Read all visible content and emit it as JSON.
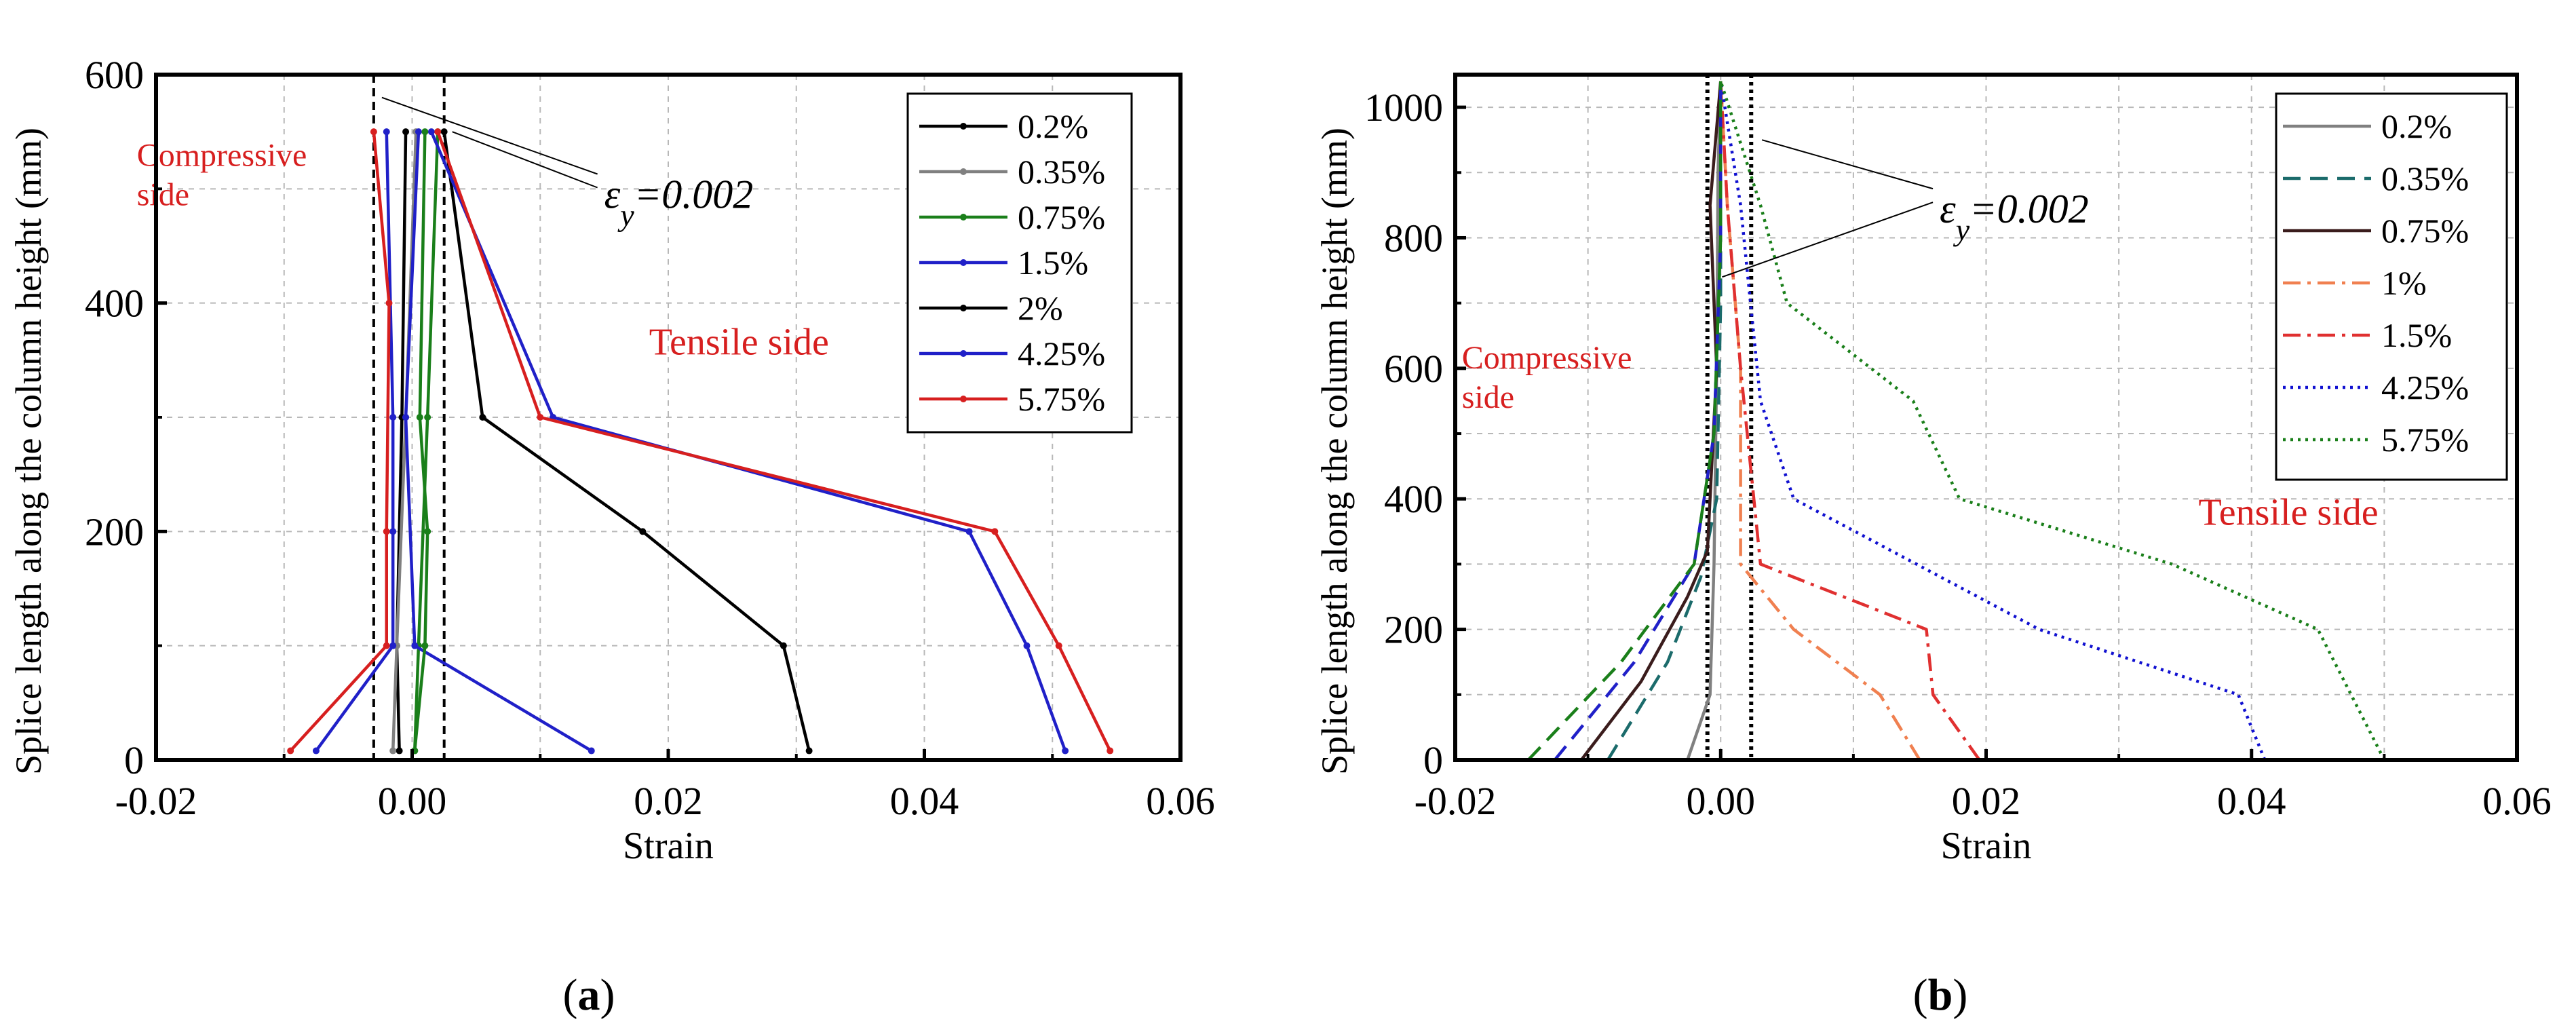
{
  "figure": {
    "panels": [
      {
        "label_text": "(a)",
        "panel_letter": "a"
      },
      {
        "label_text": "(b)",
        "panel_letter": "b"
      }
    ]
  },
  "chart_data": [
    {
      "panel": "a",
      "type": "line",
      "xlabel": "Strain",
      "ylabel": "Splice length along the column height (mm)",
      "xlim": [
        -0.02,
        0.06
      ],
      "ylim": [
        0,
        600
      ],
      "xticks": [
        -0.02,
        0.0,
        0.02,
        0.04,
        0.06
      ],
      "xtick_labels": [
        "-0.02",
        "0.00",
        "0.02",
        "0.04",
        "0.06"
      ],
      "yticks": [
        0,
        200,
        400,
        600
      ],
      "ytick_labels": [
        "0",
        "200",
        "400",
        "600"
      ],
      "grid": true,
      "legend_position": "top-right",
      "reference_lines": [
        {
          "type": "vertical",
          "x": -0.003,
          "style": "dashed",
          "color": "#000000"
        },
        {
          "type": "vertical",
          "x": 0.0025,
          "style": "dashed",
          "color": "#000000"
        }
      ],
      "annotations": [
        {
          "text": "εy=0.002",
          "main": "ε",
          "sub": "y",
          "rest": "=0.002",
          "x": 0.015,
          "y": 510,
          "anchor_x1": -0.003,
          "anchor_y1": 580,
          "anchor_x2": 0.0025,
          "anchor_y2": 550,
          "color": "#000000"
        },
        {
          "text": "Compressive side",
          "lines": [
            "Compressive",
            "side"
          ],
          "x": -0.0215,
          "y": 520,
          "color": "#d71f1f"
        },
        {
          "text": "Tensile side",
          "x": 0.0185,
          "y": 355,
          "color": "#d71f1f"
        }
      ],
      "series": [
        {
          "name": "0.2%",
          "color": "#000000",
          "dash": "solid",
          "marker": true,
          "points": [
            [
              -0.001,
              8
            ],
            [
              -0.0012,
              100
            ],
            [
              -0.0008,
              300
            ],
            [
              -0.0005,
              550
            ]
          ]
        },
        {
          "name": "0.35%",
          "color": "#808080",
          "dash": "solid",
          "marker": true,
          "points": [
            [
              -0.0015,
              8
            ],
            [
              -0.0012,
              100
            ],
            [
              -0.0005,
              300
            ],
            [
              0.0003,
              550
            ]
          ]
        },
        {
          "name": "0.75%",
          "color": "#1a7f1a",
          "dash": "solid",
          "marker": true,
          "points": [
            [
              0.0002,
              8
            ],
            [
              0.0005,
              100
            ],
            [
              0.0012,
              300
            ],
            [
              0.002,
              550
            ]
          ]
        },
        {
          "name": "1.5%",
          "color": "#2020c8",
          "dash": "solid",
          "marker": true,
          "points": [
            [
              0.014,
              8
            ],
            [
              0.0002,
              100
            ],
            [
              -0.0005,
              300
            ],
            [
              0.0005,
              550
            ]
          ]
        },
        {
          "name": "2%",
          "color": "#000000",
          "dash": "solid",
          "marker": true,
          "points": [
            [
              0.031,
              8
            ],
            [
              0.029,
              100
            ],
            [
              0.018,
              200
            ],
            [
              0.0055,
              300
            ],
            [
              0.0025,
              550
            ]
          ]
        },
        {
          "name": "4.25%",
          "color": "#2020c8",
          "dash": "solid",
          "marker": true,
          "points": [
            [
              0.051,
              8
            ],
            [
              0.048,
              100
            ],
            [
              0.0435,
              200
            ],
            [
              0.011,
              300
            ],
            [
              0.0015,
              550
            ]
          ]
        },
        {
          "name": "5.75%",
          "color": "#d71f1f",
          "dash": "solid",
          "marker": true,
          "points": [
            [
              0.0545,
              8
            ],
            [
              0.0505,
              100
            ],
            [
              0.0455,
              200
            ],
            [
              0.01,
              300
            ],
            [
              0.002,
              550
            ]
          ]
        },
        {
          "name": "",
          "color": "#2020c8",
          "dash": "solid",
          "marker": true,
          "legend": false,
          "points": [
            [
              -0.0075,
              8
            ],
            [
              -0.0015,
              100
            ],
            [
              -0.0015,
              200
            ],
            [
              -0.0015,
              300
            ],
            [
              -0.002,
              550
            ]
          ]
        },
        {
          "name": "",
          "color": "#d71f1f",
          "dash": "solid",
          "marker": true,
          "legend": false,
          "points": [
            [
              -0.0095,
              8
            ],
            [
              -0.002,
              100
            ],
            [
              -0.002,
              200
            ],
            [
              -0.0018,
              400
            ],
            [
              -0.003,
              550
            ]
          ]
        },
        {
          "name": "",
          "color": "#1a7f1a",
          "dash": "solid",
          "marker": true,
          "legend": false,
          "points": [
            [
              0.0002,
              8
            ],
            [
              0.001,
              100
            ],
            [
              0.0012,
              200
            ],
            [
              0.0006,
              300
            ],
            [
              0.001,
              550
            ]
          ]
        }
      ]
    },
    {
      "panel": "b",
      "type": "line",
      "xlabel": "Strain",
      "ylabel": "Splice length along the column height (mm)",
      "xlim": [
        -0.02,
        0.06
      ],
      "ylim": [
        0,
        1050
      ],
      "xticks": [
        -0.02,
        0.0,
        0.02,
        0.04,
        0.06
      ],
      "xtick_labels": [
        "-0.02",
        "0.00",
        "0.02",
        "0.04",
        "0.06"
      ],
      "yticks": [
        0,
        200,
        400,
        600,
        800,
        1000
      ],
      "ytick_labels": [
        "0",
        "200",
        "400",
        "600",
        "800",
        "1000"
      ],
      "grid": true,
      "legend_position": "top-right",
      "reference_lines": [
        {
          "type": "vertical",
          "x": -0.001,
          "style": "dotted",
          "color": "#000000"
        },
        {
          "type": "vertical",
          "x": 0.0023,
          "style": "dotted",
          "color": "#000000"
        }
      ],
      "annotations": [
        {
          "text": "εy=0.002",
          "main": "ε",
          "sub": "y",
          "rest": "=0.002",
          "x": 0.0165,
          "y": 870,
          "anchor_x1": 0.0025,
          "anchor_y1": 950,
          "anchor_x2": -0.0005,
          "anchor_y2": 740,
          "color": "#000000"
        },
        {
          "text": "Compressive side",
          "lines": [
            "Compressive",
            "side"
          ],
          "x": -0.0195,
          "y": 600,
          "color": "#d71f1f"
        },
        {
          "text": "Tensile side",
          "x": 0.036,
          "y": 360,
          "color": "#d71f1f"
        }
      ],
      "series": [
        {
          "name": "0.2%",
          "color": "#808080",
          "dash": "solid",
          "points": [
            [
              -0.0025,
              0
            ],
            [
              -0.0008,
              100
            ],
            [
              -0.0005,
              300
            ],
            [
              -0.0003,
              600
            ],
            [
              -0.0002,
              900
            ],
            [
              0.0,
              1040
            ]
          ]
        },
        {
          "name": "0.35%",
          "color": "#1b6b6b",
          "dash": "dashed",
          "points": [
            [
              -0.0085,
              0
            ],
            [
              -0.004,
              150
            ],
            [
              -0.0015,
              280
            ],
            [
              -0.0003,
              400
            ],
            [
              0.0,
              700
            ],
            [
              0.0,
              1040
            ]
          ]
        },
        {
          "name": "0.75%",
          "color": "#3a1c1c",
          "dash": "solid",
          "points": [
            [
              -0.0105,
              0
            ],
            [
              -0.006,
              120
            ],
            [
              -0.0025,
              250
            ],
            [
              -0.001,
              320
            ],
            [
              -0.0003,
              600
            ],
            [
              -0.0008,
              850
            ],
            [
              0.0,
              1040
            ]
          ]
        },
        {
          "name": "1%",
          "color": "#f08050",
          "dash": "dashdot",
          "points": [
            [
              0.015,
              0
            ],
            [
              0.012,
              100
            ],
            [
              0.0055,
              200
            ],
            [
              0.0015,
              300
            ],
            [
              0.0015,
              600
            ],
            [
              0.0005,
              850
            ],
            [
              0.0,
              1040
            ]
          ]
        },
        {
          "name": "1.5%",
          "color": "#e03030",
          "dash": "dashdot",
          "points": [
            [
              0.0195,
              0
            ],
            [
              0.016,
              100
            ],
            [
              0.0155,
              200
            ],
            [
              0.003,
              300
            ],
            [
              0.0015,
              600
            ],
            [
              0.0005,
              850
            ],
            [
              0.0,
              1040
            ]
          ]
        },
        {
          "name": "4.25%",
          "color": "#1010d0",
          "dash": "dotted",
          "points": [
            [
              0.041,
              0
            ],
            [
              0.039,
              100
            ],
            [
              0.024,
              200
            ],
            [
              0.0055,
              400
            ],
            [
              0.003,
              550
            ],
            [
              0.0015,
              850
            ],
            [
              0.0,
              1040
            ]
          ]
        },
        {
          "name": "5.75%",
          "color": "#1a7f1a",
          "dash": "dotted",
          "points": [
            [
              0.05,
              0
            ],
            [
              0.0475,
              100
            ],
            [
              0.045,
              200
            ],
            [
              0.034,
              300
            ],
            [
              0.018,
              400
            ],
            [
              0.0145,
              550
            ],
            [
              0.005,
              700
            ],
            [
              0.003,
              850
            ],
            [
              0.0,
              1040
            ]
          ]
        },
        {
          "name": "",
          "color": "#2020c8",
          "dash": "dashed",
          "legend": false,
          "points": [
            [
              -0.0125,
              0
            ],
            [
              -0.0065,
              150
            ],
            [
              -0.002,
              300
            ],
            [
              -0.0005,
              500
            ],
            [
              0.0,
              800
            ],
            [
              0.0,
              1040
            ]
          ]
        },
        {
          "name": "",
          "color": "#1a7f1a",
          "dash": "dashed",
          "legend": false,
          "points": [
            [
              -0.0145,
              0
            ],
            [
              -0.0075,
              150
            ],
            [
              -0.002,
              300
            ],
            [
              -0.0005,
              500
            ],
            [
              0.0,
              800
            ],
            [
              0.0,
              1040
            ]
          ]
        }
      ]
    }
  ]
}
